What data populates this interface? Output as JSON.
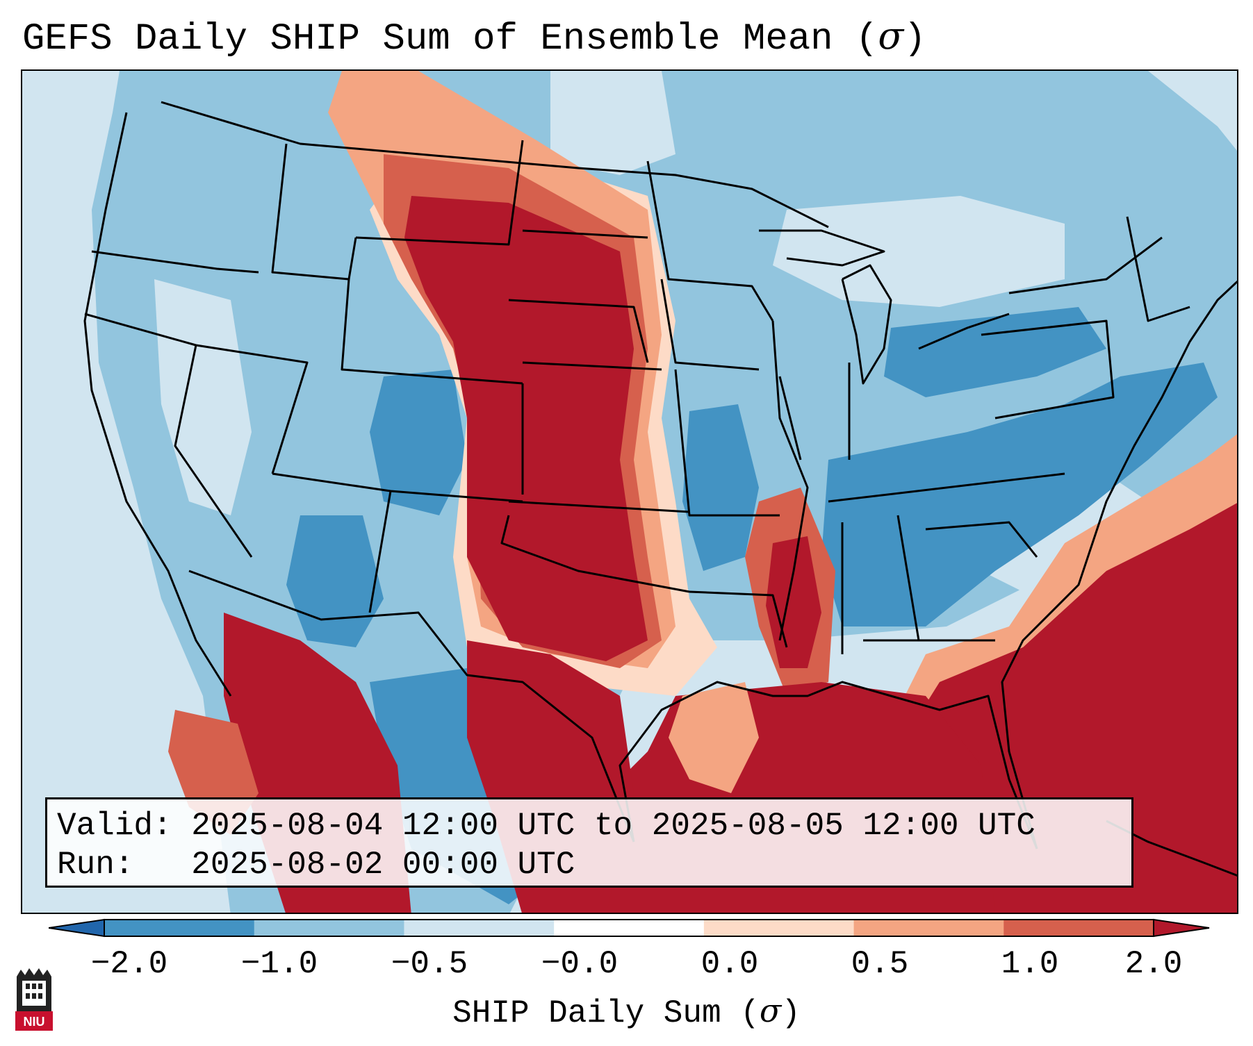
{
  "title": {
    "text": "GEFS Daily SHIP Sum of Ensemble Mean (",
    "symbol": "σ",
    "close": ")"
  },
  "info": {
    "valid_label": "Valid:",
    "valid_value": "2025-08-04 12:00 UTC to 2025-08-05 12:00 UTC",
    "run_label": "Run:",
    "run_value": "2025-08-02 00:00 UTC"
  },
  "colorbar": {
    "label_text": "SHIP Daily Sum (",
    "label_symbol": "σ",
    "label_close": ")",
    "ticks": [
      "−2.0",
      "−1.0",
      "−0.5",
      "−0.0",
      "0.0",
      "0.5",
      "1.0",
      "2.0"
    ],
    "colors": [
      "#4393c3",
      "#92c5de",
      "#d1e5f0",
      "#ffffff",
      "#fddbc7",
      "#f4a582",
      "#d6604d"
    ],
    "under_color": "#2166ac",
    "over_color": "#b2182b"
  },
  "map_colors": {
    "ocean": "#d1e5f0",
    "strong_neg": "#4393c3",
    "neg": "#92c5de",
    "weak_neg": "#d1e5f0",
    "weak_pos": "#fddbc7",
    "pos": "#f4a582",
    "strong_pos_light": "#d6604d",
    "strong_pos": "#b2182b",
    "borders": "#000000"
  },
  "logo": {
    "text": "NIU",
    "color": "#c8102e"
  }
}
